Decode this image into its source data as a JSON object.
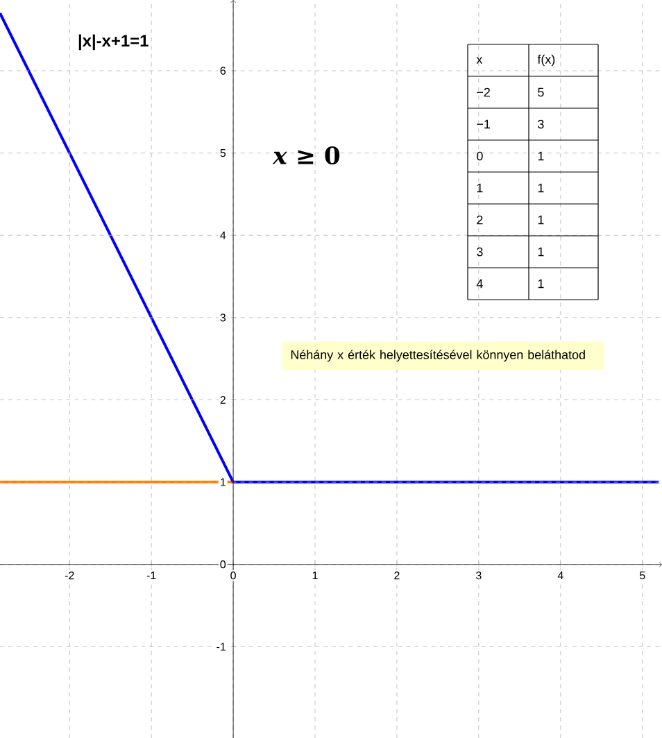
{
  "chart_data": {
    "type": "line",
    "title": "|x|-x+1=1",
    "series": [
      {
        "color": "#ff7f00",
        "x": [
          -2.85,
          0
        ],
        "values": [
          1,
          1
        ]
      },
      {
        "color": "#0000ff",
        "x": [
          -2.85,
          0,
          5.2
        ],
        "values": [
          6.7,
          1,
          1
        ]
      }
    ],
    "xlim": [
      -2.85,
      5.24
    ],
    "ylim": [
      -2.11,
      6.86
    ],
    "xticks": [
      -2,
      -1,
      0,
      1,
      2,
      3,
      4,
      5
    ],
    "yticks": [
      -1,
      0,
      1,
      2,
      3,
      4,
      5,
      6
    ],
    "grid": true,
    "annotations": [
      "x",
      "f(x)",
      "−2",
      "5",
      "−1",
      "3",
      "0",
      "1",
      "1",
      "1",
      "2",
      "1",
      "3",
      "1",
      "4",
      "1",
      "*x* ≥ 0",
      "Néhány x érték helyettesítésével könnyen beláthatod"
    ]
  }
}
